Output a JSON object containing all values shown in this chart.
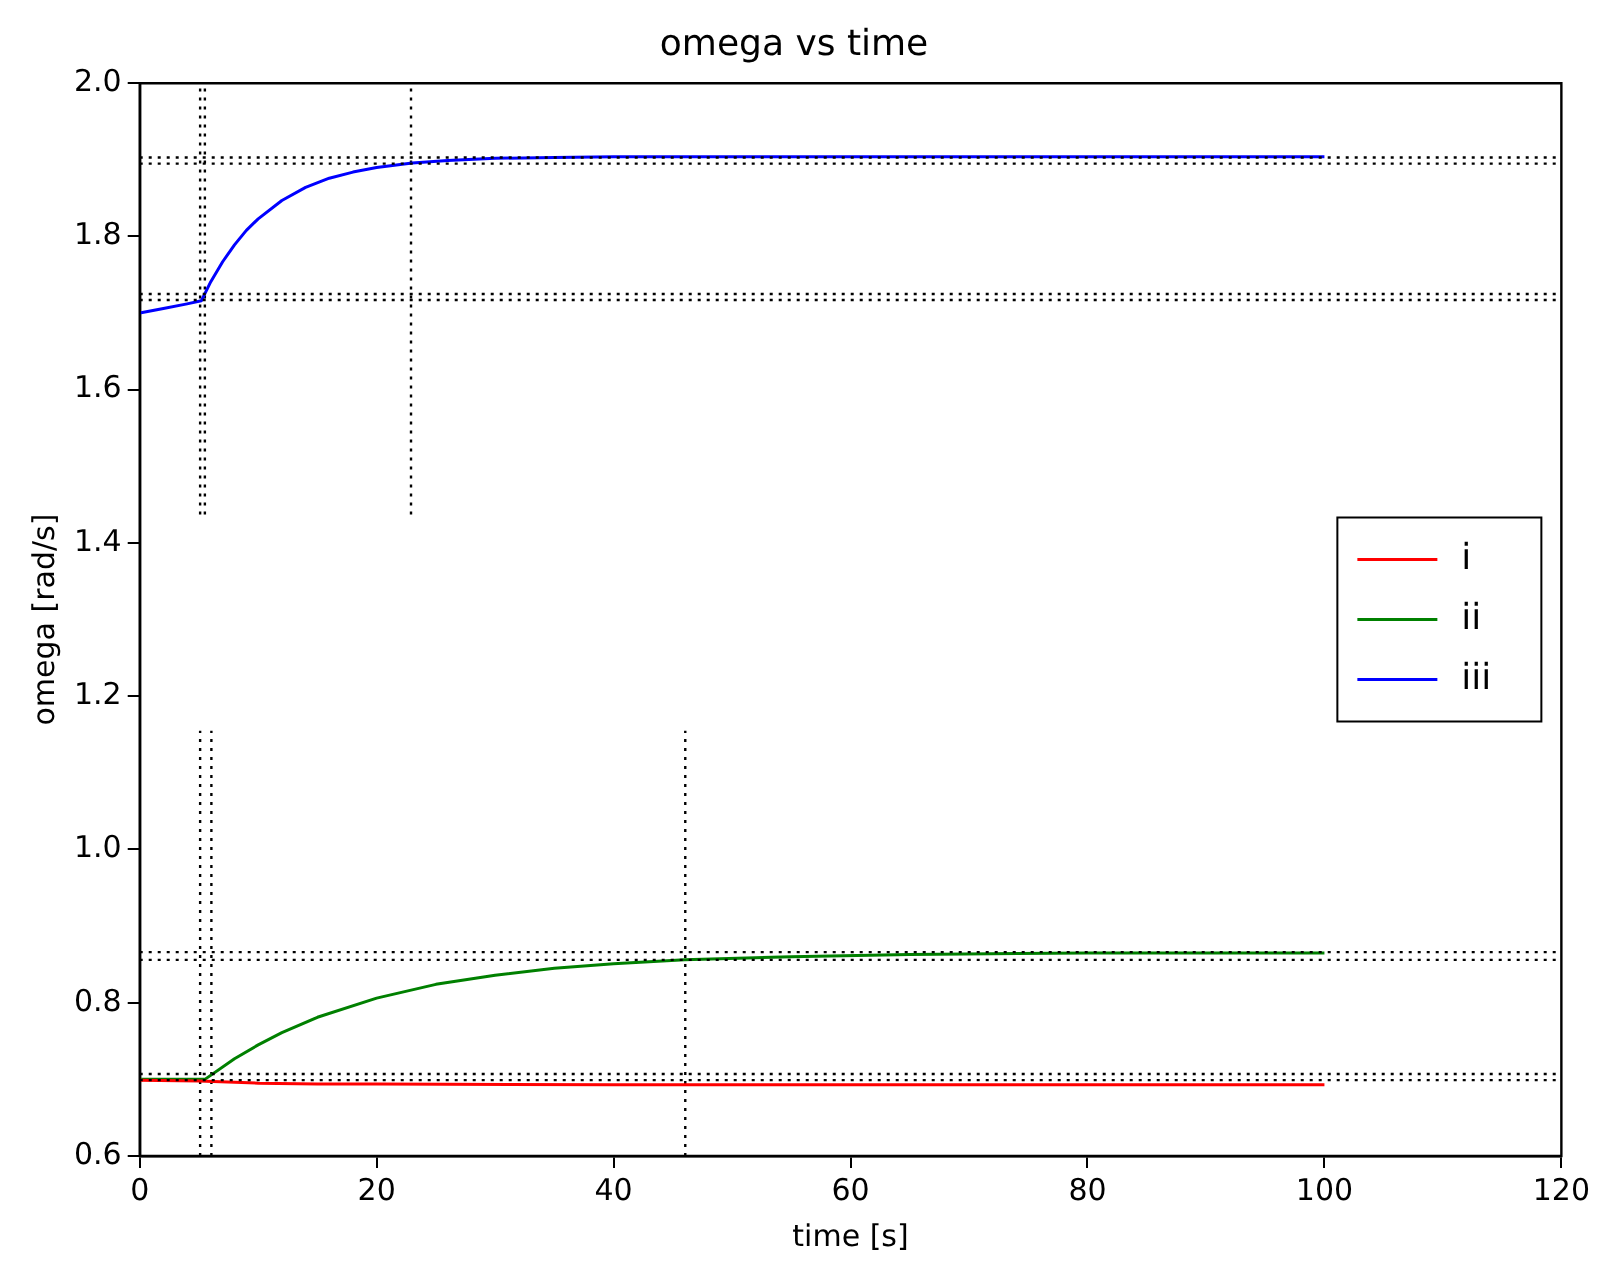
{
  "chart_data": {
    "type": "line",
    "title": "omega vs time",
    "xlabel": "time [s]",
    "ylabel": "omega [rad/s]",
    "xlim": [
      0,
      120
    ],
    "xticks": [
      0,
      20,
      40,
      60,
      80,
      100,
      120
    ],
    "ylim": [
      0.6,
      2.0
    ],
    "yticks": [
      0.6,
      0.8,
      {
        "value": 1,
        "label": "1.0"
      },
      1.2,
      1.4,
      1.6,
      1.8,
      {
        "value": 2,
        "label": "2.0"
      }
    ],
    "grid": false,
    "legend": "right",
    "marker": "none",
    "line_style": "solid",
    "series": [
      {
        "name": "i",
        "color": "#ff0000",
        "x": [
          0,
          5,
          10,
          15,
          20,
          40,
          60,
          80,
          100
        ],
        "values": [
          0.699,
          0.698,
          0.695,
          0.694,
          0.694,
          0.693,
          0.693,
          0.693,
          0.693
        ]
      },
      {
        "name": "ii",
        "color": "#008000",
        "x": [
          0,
          5.5,
          8,
          10,
          12,
          15,
          20,
          25,
          30,
          35,
          40,
          46,
          55,
          65,
          80,
          100
        ],
        "values": [
          0.7,
          0.7,
          0.727,
          0.745,
          0.761,
          0.781,
          0.806,
          0.824,
          0.836,
          0.845,
          0.851,
          0.856,
          0.86,
          0.863,
          0.865,
          0.865
        ]
      },
      {
        "name": "iii",
        "color": "#0000ff",
        "x": [
          0,
          2,
          4,
          5.2,
          6,
          7,
          8,
          9,
          10,
          12,
          14,
          16,
          18,
          20,
          23,
          26,
          30,
          35,
          40,
          60,
          80,
          100
        ],
        "values": [
          1.7,
          1.706,
          1.712,
          1.716,
          1.741,
          1.767,
          1.789,
          1.808,
          1.823,
          1.847,
          1.864,
          1.876,
          1.884,
          1.89,
          1.896,
          1.899,
          1.902,
          1.903,
          1.904,
          1.904,
          1.904,
          1.904
        ]
      },
      {
        "color": "#000000",
        "line_style": "dotted",
        "x": [
          5.1,
          5.1
        ],
        "values": [
          1.437,
          2.0
        ]
      },
      {
        "color": "#000000",
        "line_style": "dotted",
        "x": [
          5.5,
          5.5
        ],
        "values": [
          1.437,
          2.0
        ]
      },
      {
        "color": "#000000",
        "line_style": "dotted",
        "x": [
          22.9,
          22.9
        ],
        "values": [
          1.437,
          2.0
        ]
      },
      {
        "color": "#000000",
        "line_style": "dotted",
        "x": [
          5.1,
          5.1
        ],
        "values": [
          0.6,
          1.155
        ]
      },
      {
        "color": "#000000",
        "line_style": "dotted",
        "x": [
          6.05,
          6.05
        ],
        "values": [
          0.6,
          1.155
        ]
      },
      {
        "color": "#000000",
        "line_style": "dotted",
        "x": [
          46.05,
          46.05
        ],
        "values": [
          0.6,
          1.155
        ]
      }
    ],
    "ref_lines": [
      {
        "axis": "y",
        "value": 1.903,
        "color": "#000000",
        "line_style": "dotted"
      },
      {
        "axis": "y",
        "value": 1.895,
        "color": "#000000",
        "line_style": "dotted"
      },
      {
        "axis": "y",
        "value": 1.725,
        "color": "#000000",
        "line_style": "dotted"
      },
      {
        "axis": "y",
        "value": 1.717,
        "color": "#000000",
        "line_style": "dotted"
      },
      {
        "axis": "y",
        "value": 0.866,
        "color": "#000000",
        "line_style": "dotted"
      },
      {
        "axis": "y",
        "value": 0.856,
        "color": "#000000",
        "line_style": "dotted"
      },
      {
        "axis": "y",
        "value": 0.707,
        "color": "#000000",
        "line_style": "dotted"
      },
      {
        "axis": "y",
        "value": 0.699,
        "color": "#000000",
        "line_style": "dotted"
      }
    ]
  }
}
